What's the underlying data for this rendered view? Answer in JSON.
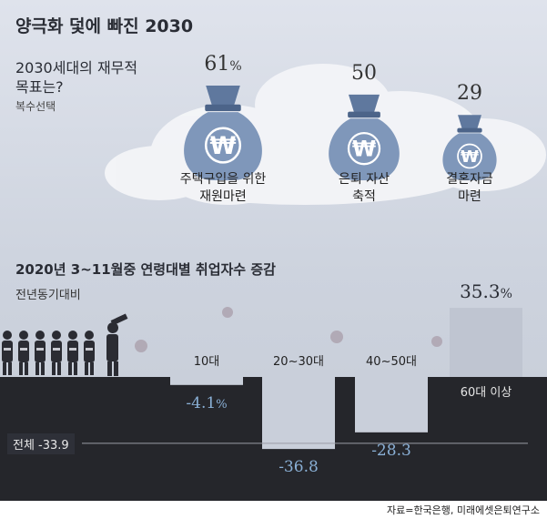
{
  "header": {
    "title": "양극화 덫에 빠진 2030",
    "goal_title": "2030세대의 재무적 목표는?",
    "goal_note": "복수선택"
  },
  "chart_data": [
    {
      "type": "bar",
      "title": "2030세대의 재무적 목표는?",
      "subtitle": "복수선택",
      "unit": "%",
      "categories": [
        "주택구입을 위한 재원마련",
        "은퇴 자산 축적",
        "결혼자금 마련"
      ],
      "category_lines": [
        [
          "주택구입을 위한",
          "재원마련"
        ],
        [
          "은퇴 자산",
          "축적"
        ],
        [
          "결혼자금",
          "마련"
        ]
      ],
      "values": [
        61,
        50,
        29
      ],
      "value_labels": [
        "61",
        "50",
        "29"
      ],
      "value_suffix": [
        "%",
        "",
        ""
      ]
    },
    {
      "type": "bar",
      "title": "2020년 3~11월중 연령대별 취업자수 증감",
      "subtitle": "전년동기대비",
      "categories": [
        "10대",
        "20~30대",
        "40~50대",
        "60대 이상"
      ],
      "values": [
        -4.1,
        -36.8,
        -28.3,
        35.3
      ],
      "value_labels": [
        "-4.1",
        "-36.8",
        "-28.3",
        "35.3"
      ],
      "value_suffix": [
        "%",
        "",
        "",
        "%"
      ],
      "total": {
        "label": "전체",
        "value": -33.9,
        "text": "전체 -33.9"
      }
    }
  ],
  "employment": {
    "title": "2020년 3~11월중 연령대별 취업자수 증감",
    "note": "전년동기대비"
  },
  "colors": {
    "bag": "#7f97ba",
    "bag_dark": "#5f789e",
    "ground": "#25262b",
    "negative_text": "#8ab0d6",
    "positive_bar": "#c9cfda"
  },
  "icons": {
    "bag_symbol": "₩"
  },
  "source": "자료=한국은행, 미래에셋은퇴연구소"
}
